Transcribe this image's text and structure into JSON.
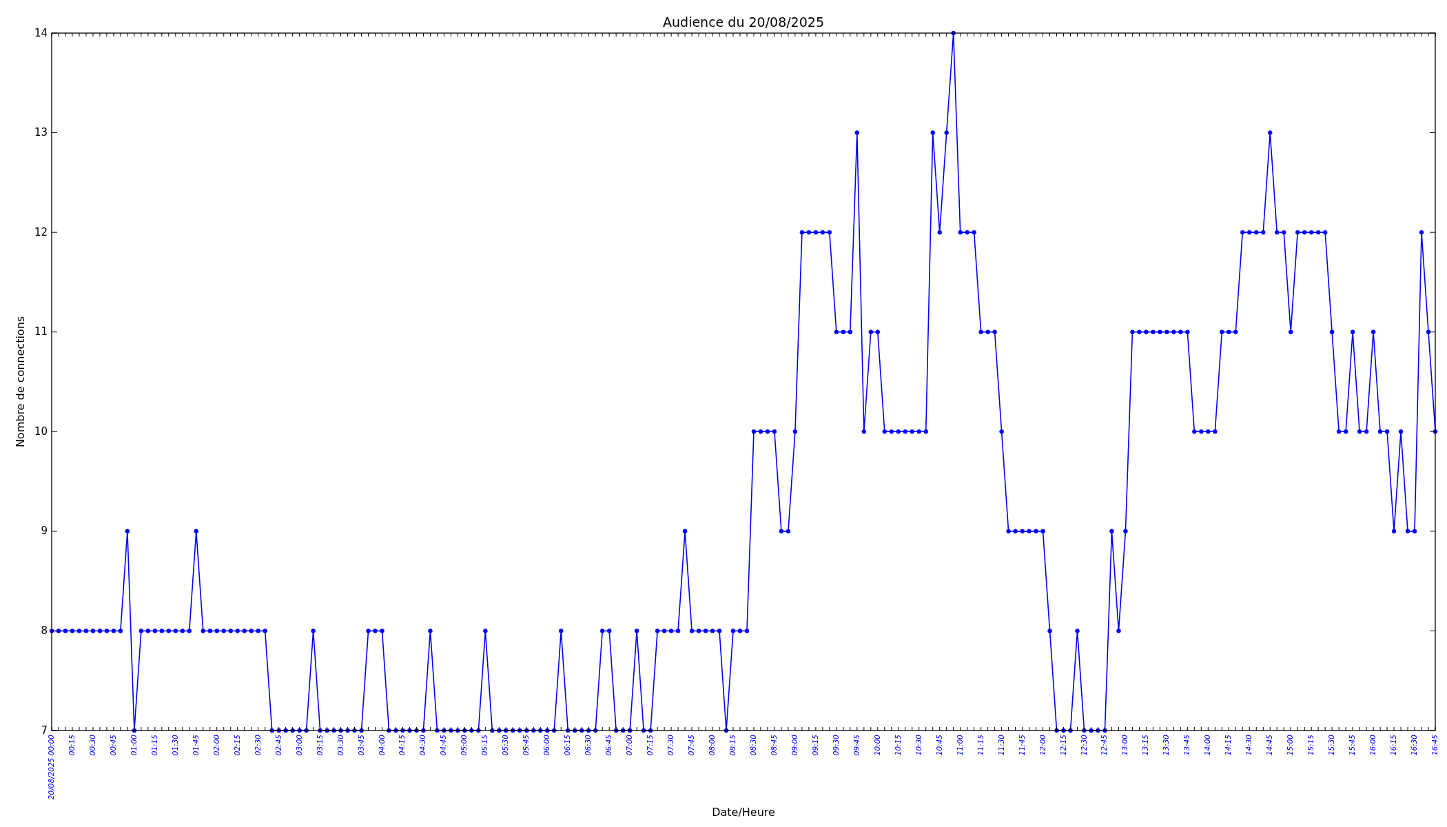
{
  "chart_data": {
    "type": "line",
    "title": "Audience du 20/08/2025",
    "xlabel": "Date/Heure",
    "ylabel": "Nombre de connections",
    "x": [
      "2025-08-20T00:00",
      "2025-08-20T00:05",
      "2025-08-20T00:10",
      "2025-08-20T00:15",
      "2025-08-20T00:20",
      "2025-08-20T00:25",
      "2025-08-20T00:30",
      "2025-08-20T00:35",
      "2025-08-20T00:40",
      "2025-08-20T00:45",
      "2025-08-20T00:50",
      "2025-08-20T00:55",
      "2025-08-20T01:00",
      "2025-08-20T01:05",
      "2025-08-20T01:10",
      "2025-08-20T01:15",
      "2025-08-20T01:20",
      "2025-08-20T01:25",
      "2025-08-20T01:30",
      "2025-08-20T01:35",
      "2025-08-20T01:40",
      "2025-08-20T01:45",
      "2025-08-20T01:50",
      "2025-08-20T01:55",
      "2025-08-20T02:00",
      "2025-08-20T02:05",
      "2025-08-20T02:10",
      "2025-08-20T02:15",
      "2025-08-20T02:20",
      "2025-08-20T02:25",
      "2025-08-20T02:30",
      "2025-08-20T02:35",
      "2025-08-20T02:40",
      "2025-08-20T02:45",
      "2025-08-20T02:50",
      "2025-08-20T02:55",
      "2025-08-20T03:00",
      "2025-08-20T03:05",
      "2025-08-20T03:10",
      "2025-08-20T03:15",
      "2025-08-20T03:20",
      "2025-08-20T03:25",
      "2025-08-20T03:30",
      "2025-08-20T03:35",
      "2025-08-20T03:40",
      "2025-08-20T03:45",
      "2025-08-20T03:50",
      "2025-08-20T03:55",
      "2025-08-20T04:00",
      "2025-08-20T04:05",
      "2025-08-20T04:10",
      "2025-08-20T04:15",
      "2025-08-20T04:20",
      "2025-08-20T04:25",
      "2025-08-20T04:30",
      "2025-08-20T04:35",
      "2025-08-20T04:40",
      "2025-08-20T04:45",
      "2025-08-20T04:50",
      "2025-08-20T04:55",
      "2025-08-20T05:00",
      "2025-08-20T05:05",
      "2025-08-20T05:10",
      "2025-08-20T05:15",
      "2025-08-20T05:20",
      "2025-08-20T05:25",
      "2025-08-20T05:30",
      "2025-08-20T05:35",
      "2025-08-20T05:40",
      "2025-08-20T05:45",
      "2025-08-20T05:50",
      "2025-08-20T05:55",
      "2025-08-20T06:00",
      "2025-08-20T06:05",
      "2025-08-20T06:10",
      "2025-08-20T06:15",
      "2025-08-20T06:20",
      "2025-08-20T06:25",
      "2025-08-20T06:30",
      "2025-08-20T06:35",
      "2025-08-20T06:40",
      "2025-08-20T06:45",
      "2025-08-20T06:50",
      "2025-08-20T06:55",
      "2025-08-20T07:00",
      "2025-08-20T07:05",
      "2025-08-20T07:10",
      "2025-08-20T07:15",
      "2025-08-20T07:20",
      "2025-08-20T07:25",
      "2025-08-20T07:30",
      "2025-08-20T07:35",
      "2025-08-20T07:40",
      "2025-08-20T07:45",
      "2025-08-20T07:50",
      "2025-08-20T07:55",
      "2025-08-20T08:00",
      "2025-08-20T08:05",
      "2025-08-20T08:10",
      "2025-08-20T08:15",
      "2025-08-20T08:20",
      "2025-08-20T08:25",
      "2025-08-20T08:30",
      "2025-08-20T08:35",
      "2025-08-20T08:40",
      "2025-08-20T08:45",
      "2025-08-20T08:50",
      "2025-08-20T08:55",
      "2025-08-20T09:00",
      "2025-08-20T09:05",
      "2025-08-20T09:10",
      "2025-08-20T09:15",
      "2025-08-20T09:20",
      "2025-08-20T09:25",
      "2025-08-20T09:30",
      "2025-08-20T09:35",
      "2025-08-20T09:40",
      "2025-08-20T09:45",
      "2025-08-20T09:50",
      "2025-08-20T09:55",
      "2025-08-20T10:00",
      "2025-08-20T10:05",
      "2025-08-20T10:10",
      "2025-08-20T10:15",
      "2025-08-20T10:20",
      "2025-08-20T10:25",
      "2025-08-20T10:30",
      "2025-08-20T10:35",
      "2025-08-20T10:40",
      "2025-08-20T10:45",
      "2025-08-20T10:50",
      "2025-08-20T10:55",
      "2025-08-20T11:00",
      "2025-08-20T11:05",
      "2025-08-20T11:10",
      "2025-08-20T11:15",
      "2025-08-20T11:20",
      "2025-08-20T11:25",
      "2025-08-20T11:30",
      "2025-08-20T11:35",
      "2025-08-20T11:40",
      "2025-08-20T11:45",
      "2025-08-20T11:50",
      "2025-08-20T11:55",
      "2025-08-20T12:00",
      "2025-08-20T12:05",
      "2025-08-20T12:10",
      "2025-08-20T12:15",
      "2025-08-20T12:20",
      "2025-08-20T12:25",
      "2025-08-20T12:30",
      "2025-08-20T12:35",
      "2025-08-20T12:40",
      "2025-08-20T12:45",
      "2025-08-20T12:50",
      "2025-08-20T12:55",
      "2025-08-20T13:00",
      "2025-08-20T13:05",
      "2025-08-20T13:10",
      "2025-08-20T13:15",
      "2025-08-20T13:20",
      "2025-08-20T13:25",
      "2025-08-20T13:30",
      "2025-08-20T13:35",
      "2025-08-20T13:40",
      "2025-08-20T13:45",
      "2025-08-20T13:50",
      "2025-08-20T13:55",
      "2025-08-20T14:00",
      "2025-08-20T14:05",
      "2025-08-20T14:10",
      "2025-08-20T14:15",
      "2025-08-20T14:20",
      "2025-08-20T14:25",
      "2025-08-20T14:30",
      "2025-08-20T14:35",
      "2025-08-20T14:40",
      "2025-08-20T14:45",
      "2025-08-20T14:50",
      "2025-08-20T14:55",
      "2025-08-20T15:00",
      "2025-08-20T15:05",
      "2025-08-20T15:10",
      "2025-08-20T15:15",
      "2025-08-20T15:20",
      "2025-08-20T15:25",
      "2025-08-20T15:30",
      "2025-08-20T15:35",
      "2025-08-20T15:40",
      "2025-08-20T15:45",
      "2025-08-20T15:50",
      "2025-08-20T15:55",
      "2025-08-20T16:00",
      "2025-08-20T16:05",
      "2025-08-20T16:10",
      "2025-08-20T16:15",
      "2025-08-20T16:20",
      "2025-08-20T16:25",
      "2025-08-20T16:30",
      "2025-08-20T16:35",
      "2025-08-20T16:40",
      "2025-08-20T16:45"
    ],
    "series": [
      {
        "color": "#0000ff",
        "values": [
          8,
          8,
          8,
          8,
          8,
          8,
          8,
          8,
          8,
          8,
          8,
          9,
          7,
          8,
          8,
          8,
          8,
          8,
          8,
          8,
          8,
          9,
          8,
          8,
          8,
          8,
          8,
          8,
          8,
          8,
          8,
          8,
          7,
          7,
          7,
          7,
          7,
          7,
          8,
          7,
          7,
          7,
          7,
          7,
          7,
          7,
          8,
          8,
          8,
          7,
          7,
          7,
          7,
          7,
          7,
          8,
          7,
          7,
          7,
          7,
          7,
          7,
          7,
          8,
          7,
          7,
          7,
          7,
          7,
          7,
          7,
          7,
          7,
          7,
          8,
          7,
          7,
          7,
          7,
          7,
          8,
          8,
          7,
          7,
          7,
          8,
          7,
          7,
          8,
          8,
          8,
          8,
          9,
          8,
          8,
          8,
          8,
          8,
          7,
          8,
          8,
          8,
          10,
          10,
          10,
          10,
          9,
          9,
          10,
          12,
          12,
          12,
          12,
          12,
          11,
          11,
          11,
          13,
          10,
          11,
          11,
          10,
          10,
          10,
          10,
          10,
          10,
          10,
          13,
          12,
          13,
          14,
          12,
          12,
          12,
          11,
          11,
          11,
          10,
          9,
          9,
          9,
          9,
          9,
          9,
          8,
          7,
          7,
          7,
          8,
          7,
          7,
          7,
          7,
          9,
          8,
          9,
          11,
          11,
          11,
          11,
          11,
          11,
          11,
          11,
          11,
          10,
          10,
          10,
          10,
          11,
          11,
          11,
          12,
          12,
          12,
          12,
          13,
          12,
          12,
          11,
          12,
          12,
          12,
          12,
          12,
          11,
          10,
          10,
          11,
          10,
          10,
          11,
          10,
          10,
          9,
          10,
          9,
          9,
          12,
          11,
          10
        ]
      }
    ],
    "marker": "circle",
    "line_style": "solid",
    "grid": false,
    "xlim": [
      "2025-08-20T00:00",
      "2025-08-20T16:45"
    ],
    "ylim": [
      7,
      14
    ],
    "yticks": [
      7,
      8,
      9,
      10,
      11,
      12,
      13,
      14
    ],
    "xticks": [
      {
        "value": "2025-08-20T00:00",
        "label": "20/08/2025 00:00"
      },
      {
        "value": "2025-08-20T00:05",
        "label": null
      },
      {
        "value": "2025-08-20T00:10",
        "label": null
      },
      {
        "value": "2025-08-20T00:15",
        "label": "00:15"
      },
      {
        "value": "2025-08-20T00:20",
        "label": null
      },
      {
        "value": "2025-08-20T00:25",
        "label": null
      },
      {
        "value": "2025-08-20T00:30",
        "label": "00:30"
      },
      {
        "value": "2025-08-20T00:35",
        "label": null
      },
      {
        "value": "2025-08-20T00:40",
        "label": null
      },
      {
        "value": "2025-08-20T00:45",
        "label": "00:45"
      },
      {
        "value": "2025-08-20T00:50",
        "label": null
      },
      {
        "value": "2025-08-20T00:55",
        "label": null
      },
      {
        "value": "2025-08-20T01:00",
        "label": "01:00"
      },
      {
        "value": "2025-08-20T01:05",
        "label": null
      },
      {
        "value": "2025-08-20T01:10",
        "label": null
      },
      {
        "value": "2025-08-20T01:15",
        "label": "01:15"
      },
      {
        "value": "2025-08-20T01:20",
        "label": null
      },
      {
        "value": "2025-08-20T01:25",
        "label": null
      },
      {
        "value": "2025-08-20T01:30",
        "label": "01:30"
      },
      {
        "value": "2025-08-20T01:35",
        "label": null
      },
      {
        "value": "2025-08-20T01:40",
        "label": null
      },
      {
        "value": "2025-08-20T01:45",
        "label": "01:45"
      },
      {
        "value": "2025-08-20T01:50",
        "label": null
      },
      {
        "value": "2025-08-20T01:55",
        "label": null
      },
      {
        "value": "2025-08-20T02:00",
        "label": "02:00"
      },
      {
        "value": "2025-08-20T02:05",
        "label": null
      },
      {
        "value": "2025-08-20T02:10",
        "label": null
      },
      {
        "value": "2025-08-20T02:15",
        "label": "02:15"
      },
      {
        "value": "2025-08-20T02:20",
        "label": null
      },
      {
        "value": "2025-08-20T02:25",
        "label": null
      },
      {
        "value": "2025-08-20T02:30",
        "label": "02:30"
      },
      {
        "value": "2025-08-20T02:35",
        "label": null
      },
      {
        "value": "2025-08-20T02:40",
        "label": null
      },
      {
        "value": "2025-08-20T02:45",
        "label": "02:45"
      },
      {
        "value": "2025-08-20T02:50",
        "label": null
      },
      {
        "value": "2025-08-20T02:55",
        "label": null
      },
      {
        "value": "2025-08-20T03:00",
        "label": "03:00"
      },
      {
        "value": "2025-08-20T03:05",
        "label": null
      },
      {
        "value": "2025-08-20T03:10",
        "label": null
      },
      {
        "value": "2025-08-20T03:15",
        "label": "03:15"
      },
      {
        "value": "2025-08-20T03:20",
        "label": null
      },
      {
        "value": "2025-08-20T03:25",
        "label": null
      },
      {
        "value": "2025-08-20T03:30",
        "label": "03:30"
      },
      {
        "value": "2025-08-20T03:35",
        "label": null
      },
      {
        "value": "2025-08-20T03:40",
        "label": null
      },
      {
        "value": "2025-08-20T03:45",
        "label": "03:45"
      },
      {
        "value": "2025-08-20T03:50",
        "label": null
      },
      {
        "value": "2025-08-20T03:55",
        "label": null
      },
      {
        "value": "2025-08-20T04:00",
        "label": "04:00"
      },
      {
        "value": "2025-08-20T04:05",
        "label": null
      },
      {
        "value": "2025-08-20T04:10",
        "label": null
      },
      {
        "value": "2025-08-20T04:15",
        "label": "04:15"
      },
      {
        "value": "2025-08-20T04:20",
        "label": null
      },
      {
        "value": "2025-08-20T04:25",
        "label": null
      },
      {
        "value": "2025-08-20T04:30",
        "label": "04:30"
      },
      {
        "value": "2025-08-20T04:35",
        "label": null
      },
      {
        "value": "2025-08-20T04:40",
        "label": null
      },
      {
        "value": "2025-08-20T04:45",
        "label": "04:45"
      },
      {
        "value": "2025-08-20T04:50",
        "label": null
      },
      {
        "value": "2025-08-20T04:55",
        "label": null
      },
      {
        "value": "2025-08-20T05:00",
        "label": "05:00"
      },
      {
        "value": "2025-08-20T05:05",
        "label": null
      },
      {
        "value": "2025-08-20T05:10",
        "label": null
      },
      {
        "value": "2025-08-20T05:15",
        "label": "05:15"
      },
      {
        "value": "2025-08-20T05:20",
        "label": null
      },
      {
        "value": "2025-08-20T05:25",
        "label": null
      },
      {
        "value": "2025-08-20T05:30",
        "label": "05:30"
      },
      {
        "value": "2025-08-20T05:35",
        "label": null
      },
      {
        "value": "2025-08-20T05:40",
        "label": null
      },
      {
        "value": "2025-08-20T05:45",
        "label": "05:45"
      },
      {
        "value": "2025-08-20T05:50",
        "label": null
      },
      {
        "value": "2025-08-20T05:55",
        "label": null
      },
      {
        "value": "2025-08-20T06:00",
        "label": "06:00"
      },
      {
        "value": "2025-08-20T06:05",
        "label": null
      },
      {
        "value": "2025-08-20T06:10",
        "label": null
      },
      {
        "value": "2025-08-20T06:15",
        "label": "06:15"
      },
      {
        "value": "2025-08-20T06:20",
        "label": null
      },
      {
        "value": "2025-08-20T06:25",
        "label": null
      },
      {
        "value": "2025-08-20T06:30",
        "label": "06:30"
      },
      {
        "value": "2025-08-20T06:35",
        "label": null
      },
      {
        "value": "2025-08-20T06:40",
        "label": null
      },
      {
        "value": "2025-08-20T06:45",
        "label": "06:45"
      },
      {
        "value": "2025-08-20T06:50",
        "label": null
      },
      {
        "value": "2025-08-20T06:55",
        "label": null
      },
      {
        "value": "2025-08-20T07:00",
        "label": "07:00"
      },
      {
        "value": "2025-08-20T07:05",
        "label": null
      },
      {
        "value": "2025-08-20T07:10",
        "label": null
      },
      {
        "value": "2025-08-20T07:15",
        "label": "07:15"
      },
      {
        "value": "2025-08-20T07:20",
        "label": null
      },
      {
        "value": "2025-08-20T07:25",
        "label": null
      },
      {
        "value": "2025-08-20T07:30",
        "label": "07:30"
      },
      {
        "value": "2025-08-20T07:35",
        "label": null
      },
      {
        "value": "2025-08-20T07:40",
        "label": null
      },
      {
        "value": "2025-08-20T07:45",
        "label": "07:45"
      },
      {
        "value": "2025-08-20T07:50",
        "label": null
      },
      {
        "value": "2025-08-20T07:55",
        "label": null
      },
      {
        "value": "2025-08-20T08:00",
        "label": "08:00"
      },
      {
        "value": "2025-08-20T08:05",
        "label": null
      },
      {
        "value": "2025-08-20T08:10",
        "label": null
      },
      {
        "value": "2025-08-20T08:15",
        "label": "08:15"
      },
      {
        "value": "2025-08-20T08:20",
        "label": null
      },
      {
        "value": "2025-08-20T08:25",
        "label": null
      },
      {
        "value": "2025-08-20T08:30",
        "label": "08:30"
      },
      {
        "value": "2025-08-20T08:35",
        "label": null
      },
      {
        "value": "2025-08-20T08:40",
        "label": null
      },
      {
        "value": "2025-08-20T08:45",
        "label": "08:45"
      },
      {
        "value": "2025-08-20T08:50",
        "label": null
      },
      {
        "value": "2025-08-20T08:55",
        "label": null
      },
      {
        "value": "2025-08-20T09:00",
        "label": "09:00"
      },
      {
        "value": "2025-08-20T09:05",
        "label": null
      },
      {
        "value": "2025-08-20T09:10",
        "label": null
      },
      {
        "value": "2025-08-20T09:15",
        "label": "09:15"
      },
      {
        "value": "2025-08-20T09:20",
        "label": null
      },
      {
        "value": "2025-08-20T09:25",
        "label": null
      },
      {
        "value": "2025-08-20T09:30",
        "label": "09:30"
      },
      {
        "value": "2025-08-20T09:35",
        "label": null
      },
      {
        "value": "2025-08-20T09:40",
        "label": null
      },
      {
        "value": "2025-08-20T09:45",
        "label": "09:45"
      },
      {
        "value": "2025-08-20T09:50",
        "label": null
      },
      {
        "value": "2025-08-20T09:55",
        "label": null
      },
      {
        "value": "2025-08-20T10:00",
        "label": "10:00"
      },
      {
        "value": "2025-08-20T10:05",
        "label": null
      },
      {
        "value": "2025-08-20T10:10",
        "label": null
      },
      {
        "value": "2025-08-20T10:15",
        "label": "10:15"
      },
      {
        "value": "2025-08-20T10:20",
        "label": null
      },
      {
        "value": "2025-08-20T10:25",
        "label": null
      },
      {
        "value": "2025-08-20T10:30",
        "label": "10:30"
      },
      {
        "value": "2025-08-20T10:35",
        "label": null
      },
      {
        "value": "2025-08-20T10:40",
        "label": null
      },
      {
        "value": "2025-08-20T10:45",
        "label": "10:45"
      },
      {
        "value": "2025-08-20T10:50",
        "label": null
      },
      {
        "value": "2025-08-20T10:55",
        "label": null
      },
      {
        "value": "2025-08-20T11:00",
        "label": "11:00"
      },
      {
        "value": "2025-08-20T11:05",
        "label": null
      },
      {
        "value": "2025-08-20T11:10",
        "label": null
      },
      {
        "value": "2025-08-20T11:15",
        "label": "11:15"
      },
      {
        "value": "2025-08-20T11:20",
        "label": null
      },
      {
        "value": "2025-08-20T11:25",
        "label": null
      },
      {
        "value": "2025-08-20T11:30",
        "label": "11:30"
      },
      {
        "value": "2025-08-20T11:35",
        "label": null
      },
      {
        "value": "2025-08-20T11:40",
        "label": null
      },
      {
        "value": "2025-08-20T11:45",
        "label": "11:45"
      },
      {
        "value": "2025-08-20T11:50",
        "label": null
      },
      {
        "value": "2025-08-20T11:55",
        "label": null
      },
      {
        "value": "2025-08-20T12:00",
        "label": "12:00"
      },
      {
        "value": "2025-08-20T12:05",
        "label": null
      },
      {
        "value": "2025-08-20T12:10",
        "label": null
      },
      {
        "value": "2025-08-20T12:15",
        "label": "12:15"
      },
      {
        "value": "2025-08-20T12:20",
        "label": null
      },
      {
        "value": "2025-08-20T12:25",
        "label": null
      },
      {
        "value": "2025-08-20T12:30",
        "label": "12:30"
      },
      {
        "value": "2025-08-20T12:35",
        "label": null
      },
      {
        "value": "2025-08-20T12:40",
        "label": null
      },
      {
        "value": "2025-08-20T12:45",
        "label": "12:45"
      },
      {
        "value": "2025-08-20T12:50",
        "label": null
      },
      {
        "value": "2025-08-20T12:55",
        "label": null
      },
      {
        "value": "2025-08-20T13:00",
        "label": "13:00"
      },
      {
        "value": "2025-08-20T13:05",
        "label": null
      },
      {
        "value": "2025-08-20T13:10",
        "label": null
      },
      {
        "value": "2025-08-20T13:15",
        "label": "13:15"
      },
      {
        "value": "2025-08-20T13:20",
        "label": null
      },
      {
        "value": "2025-08-20T13:25",
        "label": null
      },
      {
        "value": "2025-08-20T13:30",
        "label": "13:30"
      },
      {
        "value": "2025-08-20T13:35",
        "label": null
      },
      {
        "value": "2025-08-20T13:40",
        "label": null
      },
      {
        "value": "2025-08-20T13:45",
        "label": "13:45"
      },
      {
        "value": "2025-08-20T13:50",
        "label": null
      },
      {
        "value": "2025-08-20T13:55",
        "label": null
      },
      {
        "value": "2025-08-20T14:00",
        "label": "14:00"
      },
      {
        "value": "2025-08-20T14:05",
        "label": null
      },
      {
        "value": "2025-08-20T14:10",
        "label": null
      },
      {
        "value": "2025-08-20T14:15",
        "label": "14:15"
      },
      {
        "value": "2025-08-20T14:20",
        "label": null
      },
      {
        "value": "2025-08-20T14:25",
        "label": null
      },
      {
        "value": "2025-08-20T14:30",
        "label": "14:30"
      },
      {
        "value": "2025-08-20T14:35",
        "label": null
      },
      {
        "value": "2025-08-20T14:40",
        "label": null
      },
      {
        "value": "2025-08-20T14:45",
        "label": "14:45"
      },
      {
        "value": "2025-08-20T14:50",
        "label": null
      },
      {
        "value": "2025-08-20T14:55",
        "label": null
      },
      {
        "value": "2025-08-20T15:00",
        "label": "15:00"
      },
      {
        "value": "2025-08-20T15:05",
        "label": null
      },
      {
        "value": "2025-08-20T15:10",
        "label": null
      },
      {
        "value": "2025-08-20T15:15",
        "label": "15:15"
      },
      {
        "value": "2025-08-20T15:20",
        "label": null
      },
      {
        "value": "2025-08-20T15:25",
        "label": null
      },
      {
        "value": "2025-08-20T15:30",
        "label": "15:30"
      },
      {
        "value": "2025-08-20T15:35",
        "label": null
      },
      {
        "value": "2025-08-20T15:40",
        "label": null
      },
      {
        "value": "2025-08-20T15:45",
        "label": "15:45"
      },
      {
        "value": "2025-08-20T15:50",
        "label": null
      },
      {
        "value": "2025-08-20T15:55",
        "label": null
      },
      {
        "value": "2025-08-20T16:00",
        "label": "16:00"
      },
      {
        "value": "2025-08-20T16:05",
        "label": null
      },
      {
        "value": "2025-08-20T16:10",
        "label": null
      },
      {
        "value": "2025-08-20T16:15",
        "label": "16:15"
      },
      {
        "value": "2025-08-20T16:20",
        "label": null
      },
      {
        "value": "2025-08-20T16:25",
        "label": null
      },
      {
        "value": "2025-08-20T16:30",
        "label": "16:30"
      },
      {
        "value": "2025-08-20T16:35",
        "label": null
      },
      {
        "value": "2025-08-20T16:40",
        "label": null
      },
      {
        "value": "2025-08-20T16:45",
        "label": "16:45"
      }
    ]
  }
}
